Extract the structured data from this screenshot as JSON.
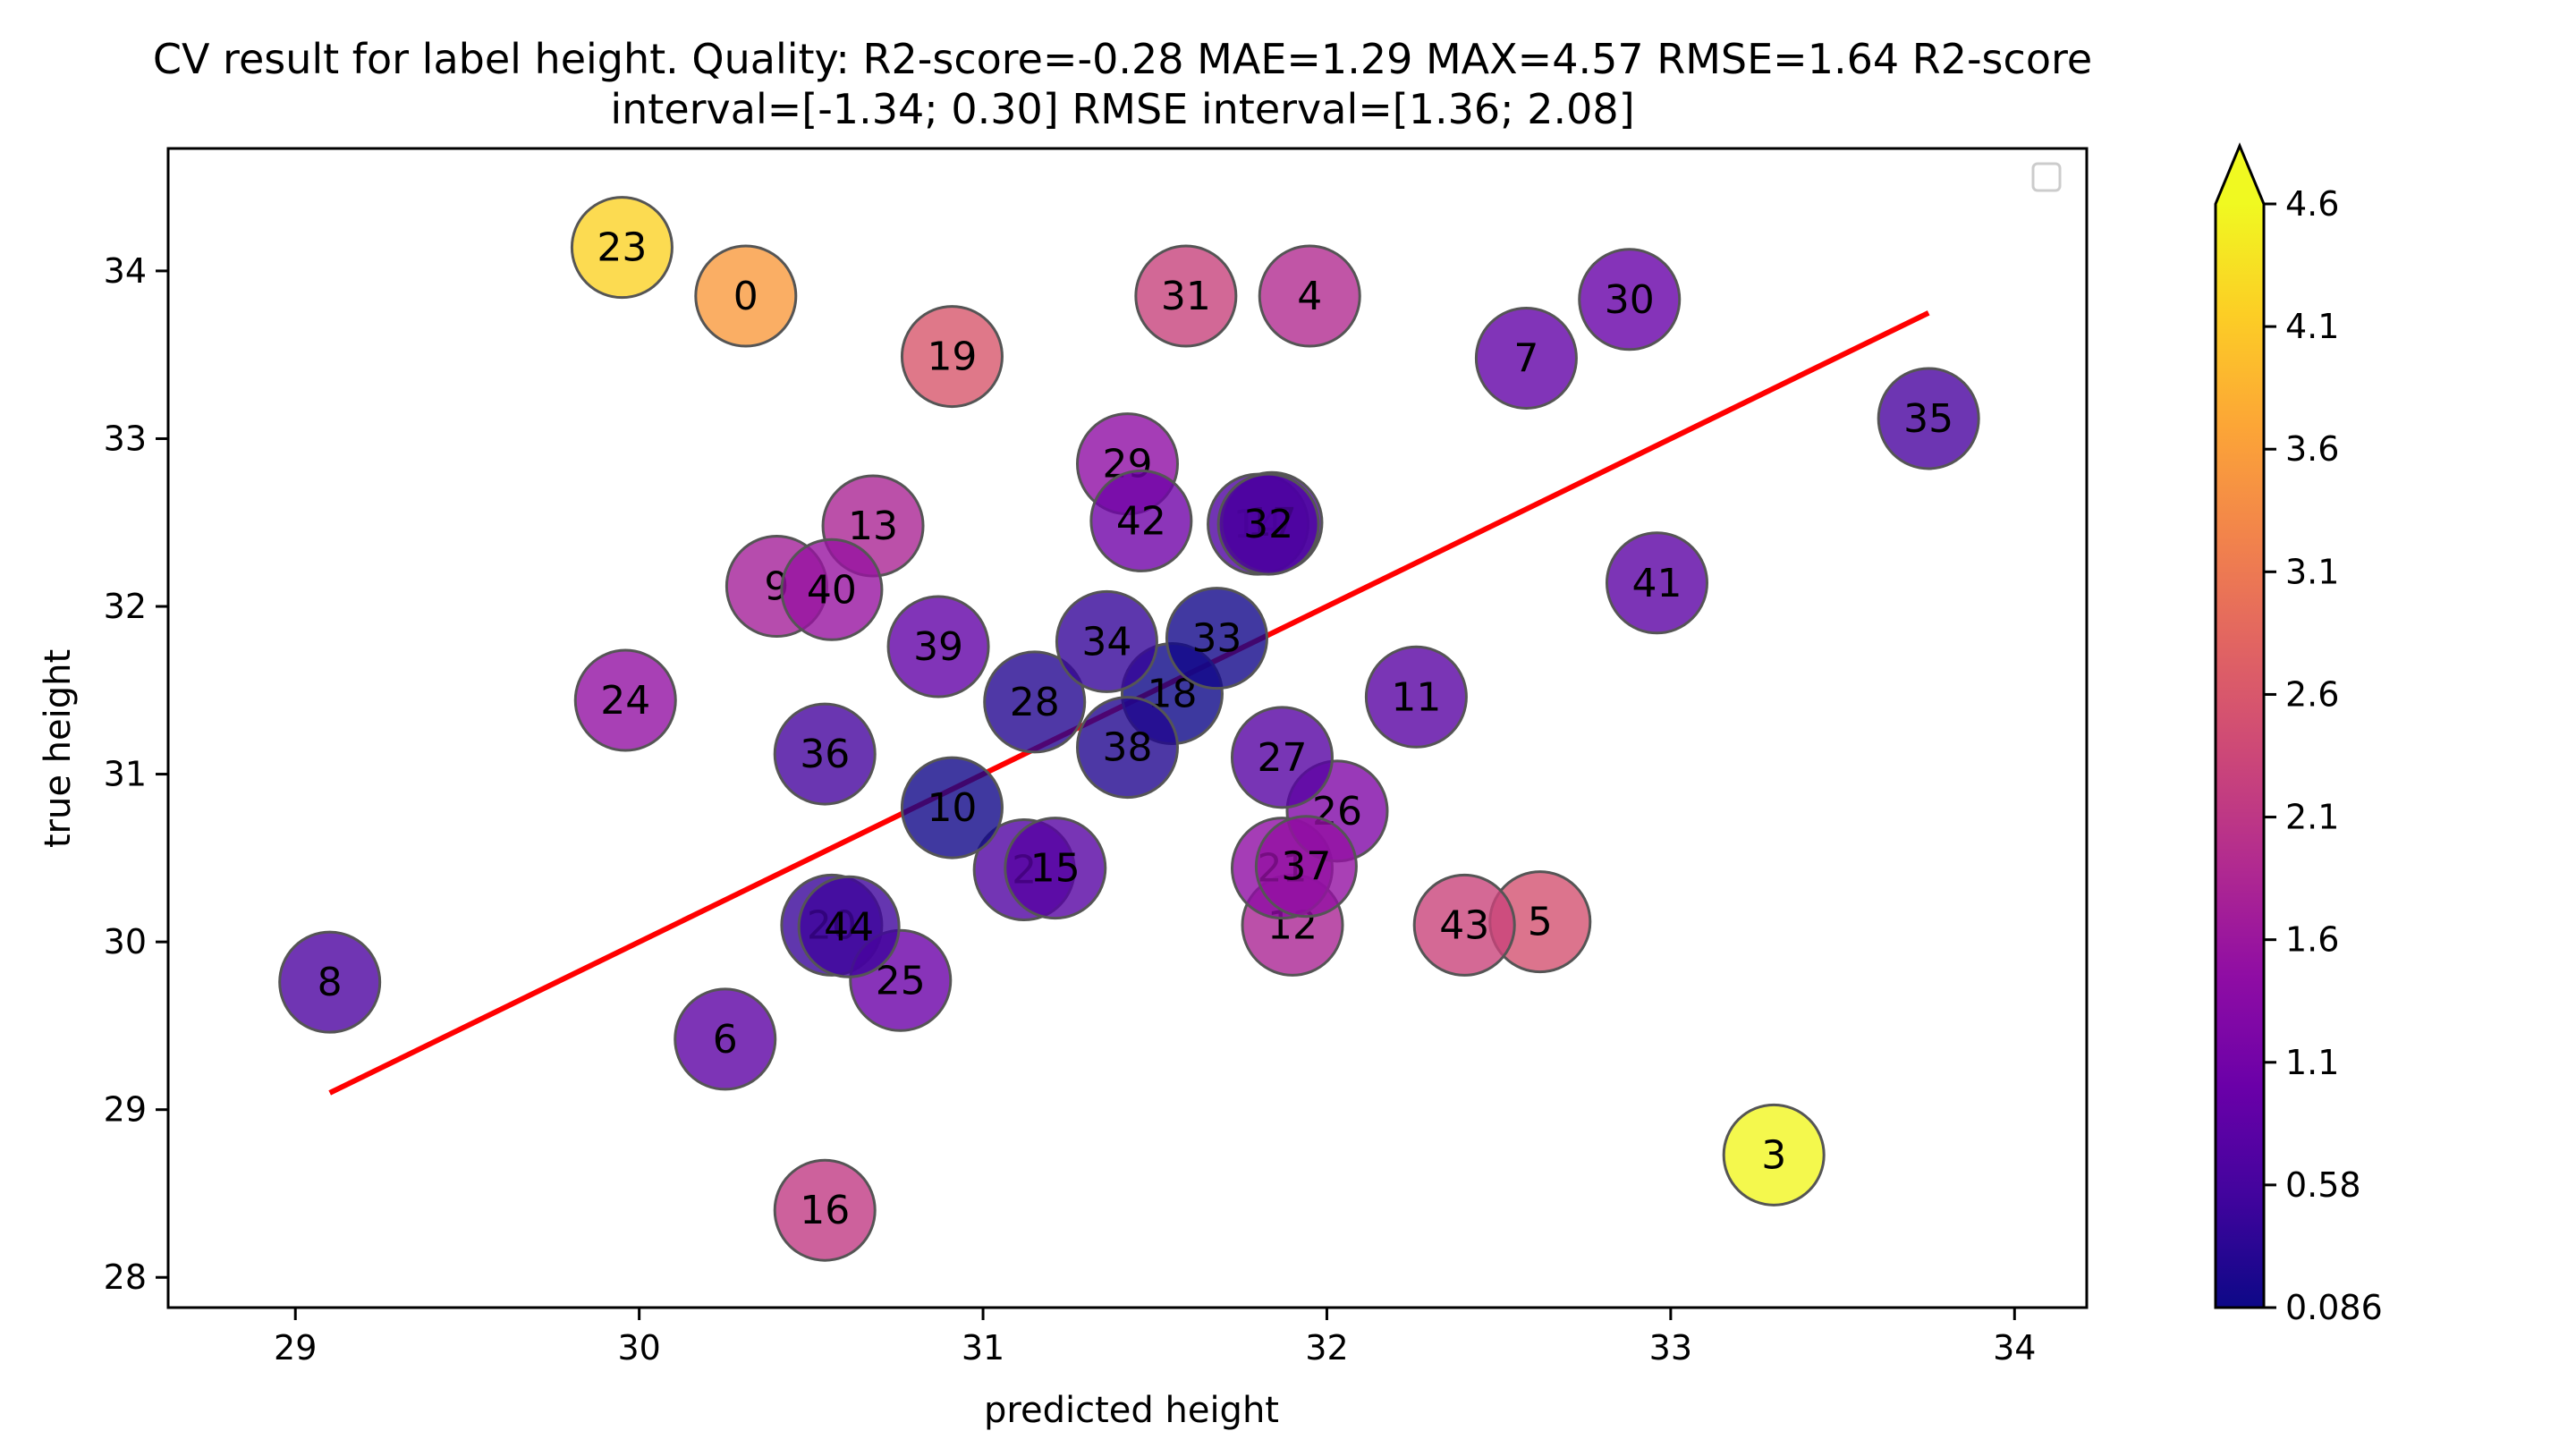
{
  "chart_data": {
    "type": "scatter",
    "title_line1": "CV result for label height. Quality: R2-score=-0.28 MAE=1.29 MAX=4.57 RMSE=1.64 R2-score",
    "title_line2": "interval=[-1.34; 0.30] RMSE interval=[1.36; 2.08]",
    "xlabel": "predicted height",
    "ylabel": "true height",
    "xlim": [
      28.63,
      34.21
    ],
    "ylim": [
      27.82,
      34.73
    ],
    "x_ticks": [
      "29",
      "30",
      "31",
      "32",
      "33",
      "34"
    ],
    "y_ticks": [
      "28",
      "29",
      "30",
      "31",
      "32",
      "33",
      "34"
    ],
    "colorbar": {
      "min": 0.086,
      "max": 4.6,
      "extend": "max",
      "ticks": [
        "0.086",
        "0.58",
        "1.1",
        "1.6",
        "2.1",
        "2.6",
        "3.1",
        "3.6",
        "4.1",
        "4.6"
      ],
      "colormap": "plasma"
    },
    "fit_line": {
      "x": [
        29.1,
        33.75
      ],
      "y": [
        29.1,
        33.75
      ],
      "color": "#ff0000"
    },
    "legend": "top-right (empty)",
    "points": [
      {
        "label": "0",
        "x": 30.31,
        "y": 33.85,
        "error": 3.54
      },
      {
        "label": "2",
        "x": 31.12,
        "y": 30.43,
        "error": 0.7
      },
      {
        "label": "3",
        "x": 33.3,
        "y": 28.73,
        "error": 4.57
      },
      {
        "label": "4",
        "x": 31.95,
        "y": 33.85,
        "error": 1.9
      },
      {
        "label": "5",
        "x": 32.62,
        "y": 30.12,
        "error": 2.5
      },
      {
        "label": "6",
        "x": 30.25,
        "y": 29.42,
        "error": 0.83
      },
      {
        "label": "7",
        "x": 32.58,
        "y": 33.48,
        "error": 0.9
      },
      {
        "label": "8",
        "x": 29.1,
        "y": 29.76,
        "error": 0.66
      },
      {
        "label": "9",
        "x": 30.4,
        "y": 32.12,
        "error": 1.72
      },
      {
        "label": "10",
        "x": 30.91,
        "y": 30.8,
        "error": 0.11
      },
      {
        "label": "11",
        "x": 32.26,
        "y": 31.46,
        "error": 0.8
      },
      {
        "label": "12",
        "x": 31.9,
        "y": 30.1,
        "error": 1.8
      },
      {
        "label": "13",
        "x": 30.68,
        "y": 32.48,
        "error": 1.8
      },
      {
        "label": "14",
        "x": 31.8,
        "y": 32.49,
        "error": 0.69
      },
      {
        "label": "15",
        "x": 31.21,
        "y": 30.44,
        "error": 0.77
      },
      {
        "label": "16",
        "x": 30.54,
        "y": 28.4,
        "error": 2.14
      },
      {
        "label": "17",
        "x": 31.84,
        "y": 32.5,
        "error": 0.66
      },
      {
        "label": "18",
        "x": 31.55,
        "y": 31.48,
        "error": 0.07
      },
      {
        "label": "19",
        "x": 30.91,
        "y": 33.49,
        "error": 2.58
      },
      {
        "label": "20",
        "x": 30.56,
        "y": 30.1,
        "error": 0.46
      },
      {
        "label": "21",
        "x": 31.87,
        "y": 30.44,
        "error": 1.43
      },
      {
        "label": "23",
        "x": 29.95,
        "y": 34.14,
        "error": 4.19
      },
      {
        "label": "24",
        "x": 29.96,
        "y": 31.44,
        "error": 1.48
      },
      {
        "label": "25",
        "x": 30.76,
        "y": 29.77,
        "error": 0.99
      },
      {
        "label": "26",
        "x": 32.03,
        "y": 30.78,
        "error": 1.25
      },
      {
        "label": "27",
        "x": 31.87,
        "y": 31.1,
        "error": 0.77
      },
      {
        "label": "28",
        "x": 31.15,
        "y": 31.43,
        "error": 0.28
      },
      {
        "label": "29",
        "x": 31.42,
        "y": 32.85,
        "error": 1.43
      },
      {
        "label": "30",
        "x": 32.88,
        "y": 33.83,
        "error": 0.95
      },
      {
        "label": "31",
        "x": 31.59,
        "y": 33.85,
        "error": 2.26
      },
      {
        "label": "32",
        "x": 31.83,
        "y": 32.49,
        "error": 0.66
      },
      {
        "label": "33",
        "x": 31.68,
        "y": 31.81,
        "error": 0.13
      },
      {
        "label": "34",
        "x": 31.36,
        "y": 31.79,
        "error": 0.43
      },
      {
        "label": "35",
        "x": 33.75,
        "y": 33.12,
        "error": 0.63
      },
      {
        "label": "36",
        "x": 30.54,
        "y": 31.12,
        "error": 0.58
      },
      {
        "label": "37",
        "x": 31.94,
        "y": 30.45,
        "error": 1.49
      },
      {
        "label": "38",
        "x": 31.42,
        "y": 31.16,
        "error": 0.26
      },
      {
        "label": "39",
        "x": 30.87,
        "y": 31.76,
        "error": 0.89
      },
      {
        "label": "40",
        "x": 30.56,
        "y": 32.1,
        "error": 1.54
      },
      {
        "label": "41",
        "x": 32.96,
        "y": 32.14,
        "error": 0.82
      },
      {
        "label": "42",
        "x": 31.46,
        "y": 32.51,
        "error": 1.05
      },
      {
        "label": "43",
        "x": 32.4,
        "y": 30.1,
        "error": 2.3
      },
      {
        "label": "44",
        "x": 30.61,
        "y": 30.09,
        "error": 0.52
      }
    ]
  }
}
